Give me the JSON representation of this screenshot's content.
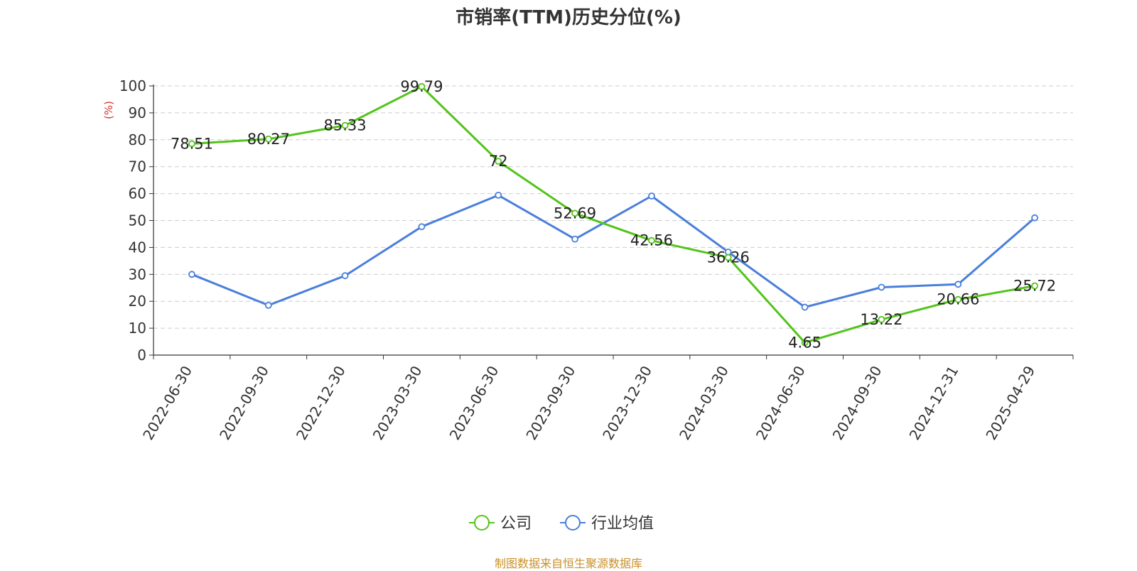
{
  "chart_data": {
    "type": "line",
    "title": "市销率(TTM)历史分位(%)",
    "ylabel": "(%)",
    "xlabel": "",
    "ylim": [
      0,
      100
    ],
    "yticks": [
      0,
      10,
      20,
      30,
      40,
      50,
      60,
      70,
      80,
      90,
      100
    ],
    "grid": true,
    "legend_position": "bottom-center",
    "categories": [
      "2022-06-30",
      "2022-09-30",
      "2022-12-30",
      "2023-03-30",
      "2023-06-30",
      "2023-09-30",
      "2023-12-30",
      "2024-03-30",
      "2024-06-30",
      "2024-09-30",
      "2024-12-31",
      "2025-04-29"
    ],
    "series": [
      {
        "name": "公司",
        "color": "#52c41a",
        "values": [
          78.51,
          80.27,
          85.33,
          99.79,
          72,
          52.69,
          42.56,
          36.26,
          4.65,
          13.22,
          20.66,
          25.72
        ],
        "data_labels": [
          "78.51",
          "80.27",
          "85.33",
          "99.79",
          "72",
          "52.69",
          "42.56",
          "36.26",
          "4.65",
          "13.22",
          "20.66",
          "25.72"
        ]
      },
      {
        "name": "行业均值",
        "color": "#4a7fdb",
        "values": [
          30,
          18.5,
          29.5,
          47.7,
          59.4,
          43.1,
          59.1,
          38.3,
          17.8,
          25.2,
          26.3,
          51
        ]
      }
    ]
  },
  "footer": {
    "source": "制图数据来自恒生聚源数据库"
  }
}
